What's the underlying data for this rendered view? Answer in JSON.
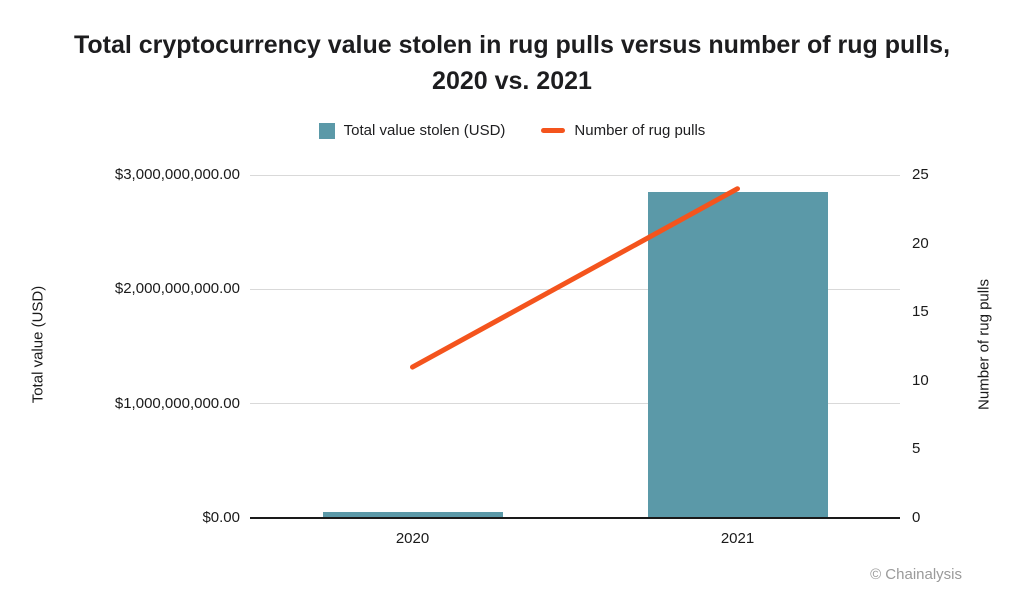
{
  "colors": {
    "bar": "#5B99A8",
    "line": "#F4541D",
    "grid": "#D9D9D9",
    "axis_line": "#1A1A1A",
    "text": "#1D1D1F",
    "source_text": "#9A9A9A"
  },
  "chart_data": {
    "type": "bar",
    "title": "Total cryptocurrency value stolen in rug pulls versus number of rug pulls, 2020 vs. 2021",
    "categories": [
      "2020",
      "2021"
    ],
    "series": [
      {
        "name": "Total value stolen (USD)",
        "type": "bar",
        "axis": "left",
        "values": [
          50000000,
          2850000000
        ]
      },
      {
        "name": "Number of rug pulls",
        "type": "line",
        "axis": "right",
        "values": [
          11,
          24
        ]
      }
    ],
    "left_axis": {
      "label": "Total value (USD)",
      "lim": [
        0,
        3000000000
      ],
      "ticks": [
        {
          "value": 0,
          "label": "$0.00"
        },
        {
          "value": 1000000000,
          "label": "$1,000,000,000.00"
        },
        {
          "value": 2000000000,
          "label": "$2,000,000,000.00"
        },
        {
          "value": 3000000000,
          "label": "$3,000,000,000.00"
        }
      ]
    },
    "right_axis": {
      "label": "Number of rug pulls",
      "lim": [
        0,
        25
      ],
      "ticks": [
        0,
        5,
        10,
        15,
        20,
        25
      ]
    },
    "grid": true,
    "legend_position": "top",
    "source": "© Chainalysis"
  }
}
